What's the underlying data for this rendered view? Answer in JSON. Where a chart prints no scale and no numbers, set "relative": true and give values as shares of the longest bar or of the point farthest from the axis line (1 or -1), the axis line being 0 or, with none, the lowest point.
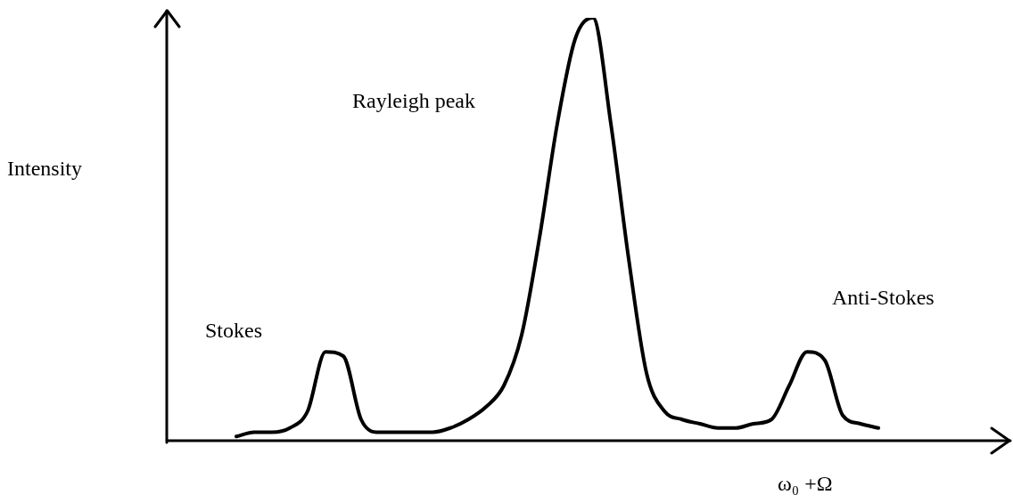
{
  "chart_data": {
    "type": "line",
    "relative": true,
    "ylabel": "Intensity",
    "xlabel": "ω₀ +Ω",
    "annotations": [
      "Rayleigh peak",
      "Stokes",
      "Anti-Stokes"
    ],
    "marker": "none",
    "grid": false,
    "legend": false,
    "categories": [
      null,
      null,
      null,
      null,
      null,
      null,
      null,
      null,
      null,
      null,
      null,
      null,
      null,
      null,
      null,
      null,
      null,
      null,
      null,
      null,
      null,
      null,
      null,
      null,
      null,
      null,
      null,
      null,
      null,
      null,
      null,
      null,
      null,
      null,
      null,
      null,
      null,
      null,
      null,
      null,
      null,
      null,
      null,
      null,
      null,
      null,
      null,
      null
    ],
    "series": [
      {
        "color": "#000000",
        "values": [
          null,
          null,
          null,
          null,
          0.01,
          0.02,
          0.02,
          0.03,
          0.07,
          0.21,
          0.2,
          0.05,
          0.02,
          0.02,
          0.02,
          0.02,
          0.03,
          0.05,
          0.08,
          0.13,
          0.25,
          0.48,
          0.75,
          0.95,
          1,
          0.75,
          0.43,
          0.16,
          0.07,
          0.05,
          0.04,
          0.03,
          0.03,
          0.04,
          0.05,
          0.13,
          0.21,
          0.19,
          0.06,
          0.04,
          0.03,
          null,
          null,
          null,
          null,
          null,
          null,
          null
        ]
      }
    ]
  }
}
